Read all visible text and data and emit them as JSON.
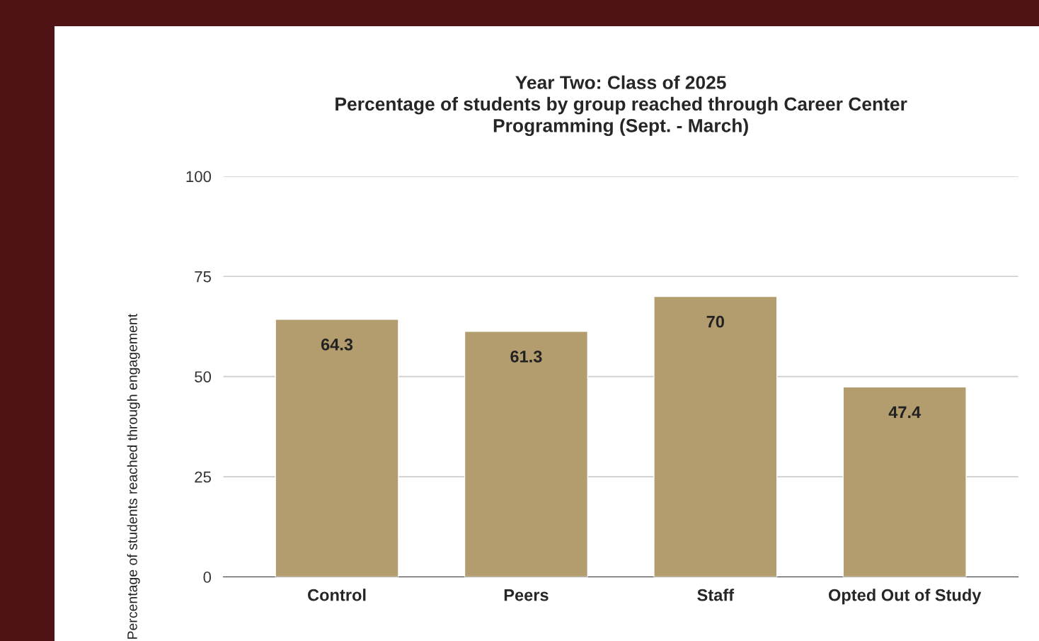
{
  "chart_data": {
    "type": "bar",
    "title": "Year Two: Class of 2025\nPercentage of students by group reached through Career Center\nProgramming (Sept. - March)",
    "ylabel": "Percentage of students reached through engagement",
    "categories": [
      "Control",
      "Peers",
      "Staff",
      "Opted Out of Study"
    ],
    "values": [
      64.3,
      61.3,
      70,
      47.4
    ],
    "color": "#b39c6d",
    "ylim": [
      0,
      100
    ],
    "yticks": [
      0,
      25,
      50,
      75,
      100
    ],
    "grid": "y",
    "data_labels": true
  }
}
